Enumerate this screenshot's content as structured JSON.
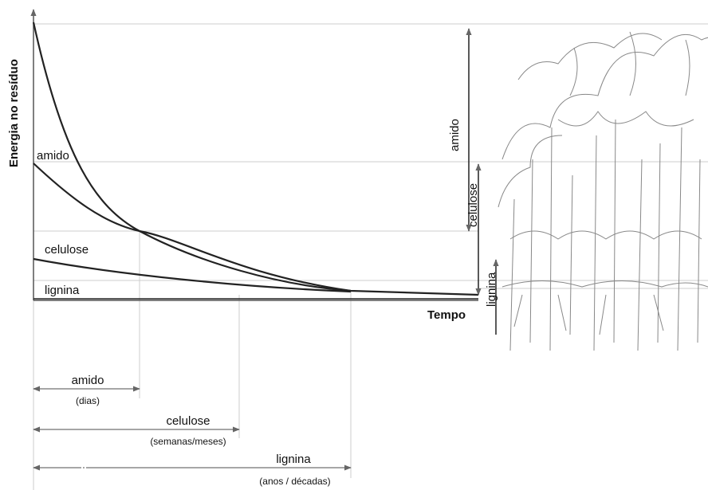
{
  "axes": {
    "y_label": "Energia no resíduo",
    "x_label": "Tempo"
  },
  "curve_labels": [
    "amido",
    "celulose",
    "lignina"
  ],
  "side_labels": [
    "amido",
    "celulose",
    "lignina"
  ],
  "durations": [
    {
      "label": "amido",
      "period": "(dias)"
    },
    {
      "label": "celulose",
      "period": "(semanas/meses)"
    },
    {
      "label": "lignina",
      "period": "(anos / décadas)"
    }
  ]
}
